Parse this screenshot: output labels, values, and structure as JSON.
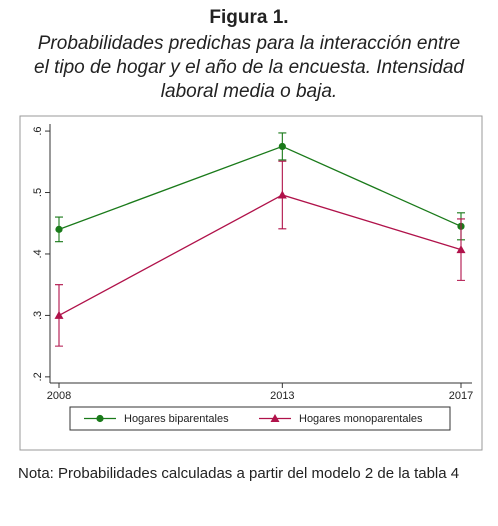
{
  "title": "Figura 1.",
  "subtitle": [
    "Probabilidades predichas para la interacción entre",
    "el tipo de hogar y el año de la encuesta. Intensidad",
    "laboral media o baja."
  ],
  "chart_data": {
    "type": "line",
    "x": [
      2008,
      2013,
      2017
    ],
    "xlim": [
      2008,
      2017
    ],
    "xticks": [
      2008,
      2013,
      2017
    ],
    "ylim": [
      0.19,
      0.605
    ],
    "yticks": [
      {
        "value": 0.2,
        "label": ".2"
      },
      {
        "value": 0.3,
        "label": ".3"
      },
      {
        "value": 0.4,
        "label": ".4"
      },
      {
        "value": 0.5,
        "label": ".5"
      },
      {
        "value": 0.6,
        "label": ".6"
      }
    ],
    "series": [
      {
        "name": "Hogares biparentales",
        "color": "#1a7a1a",
        "marker": "circle",
        "values": [
          0.44,
          0.575,
          0.445
        ],
        "errors": [
          0.02,
          0.022,
          0.022
        ]
      },
      {
        "name": "Hogares monoparentales",
        "color": "#b0124a",
        "marker": "triangle",
        "values": [
          0.3,
          0.496,
          0.407
        ],
        "errors": [
          0.05,
          0.055,
          0.05
        ]
      }
    ]
  },
  "note": "Nota: Probabilidades calculadas a partir del modelo 2 de la tabla 4"
}
